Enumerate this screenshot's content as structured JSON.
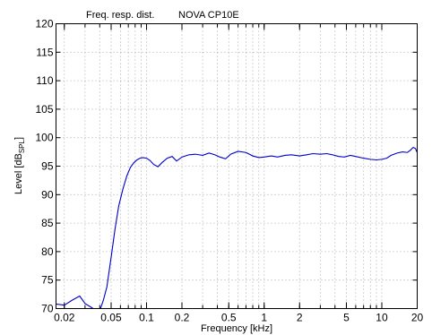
{
  "chart_data": {
    "type": "line",
    "title_left": "Freq. resp. dist.",
    "title_right": "NOVA CP10E",
    "xlabel": "Frequency [kHz]",
    "ylabel_main": "Level [dB",
    "ylabel_sub": "SPL",
    "ylabel_end": "]",
    "xscale": "log",
    "xlim": [
      0.017,
      20
    ],
    "ylim": [
      70,
      120
    ],
    "grid": true,
    "x_ticks": [
      0.02,
      0.05,
      0.1,
      0.2,
      0.5,
      1,
      2,
      5,
      10,
      20
    ],
    "x_tick_labels": [
      "0.02",
      "0.05",
      "0.1",
      "0.2",
      "0.5",
      "1",
      "2",
      "5",
      "10",
      "20"
    ],
    "y_ticks": [
      70,
      75,
      80,
      85,
      90,
      95,
      100,
      105,
      110,
      115,
      120
    ],
    "y_tick_labels": [
      "70",
      "75",
      "80",
      "85",
      "90",
      "95",
      "100",
      "105",
      "110",
      "115",
      "120"
    ],
    "series": [
      {
        "color": "#0000cc",
        "x": [
          0.017,
          0.02,
          0.023,
          0.027,
          0.03,
          0.034,
          0.037,
          0.04,
          0.043,
          0.046,
          0.05,
          0.054,
          0.058,
          0.063,
          0.068,
          0.073,
          0.078,
          0.083,
          0.088,
          0.093,
          0.1,
          0.107,
          0.115,
          0.125,
          0.135,
          0.15,
          0.165,
          0.18,
          0.2,
          0.23,
          0.26,
          0.3,
          0.34,
          0.38,
          0.42,
          0.47,
          0.52,
          0.6,
          0.7,
          0.8,
          0.9,
          1.0,
          1.15,
          1.3,
          1.5,
          1.7,
          2.0,
          2.3,
          2.6,
          3.0,
          3.4,
          3.8,
          4.3,
          4.8,
          5.4,
          6.0,
          7.0,
          8.0,
          9.0,
          10.0,
          11.0,
          12.0,
          13.5,
          15.0,
          16.5,
          17.5,
          18.5,
          19.3,
          20.0
        ],
        "y": [
          70.8,
          70.6,
          71.4,
          72.2,
          70.9,
          70.2,
          69.7,
          69.6,
          71.5,
          73.8,
          79.0,
          84.0,
          88.0,
          91.0,
          93.3,
          94.8,
          95.6,
          96.1,
          96.4,
          96.5,
          96.4,
          96.0,
          95.3,
          94.9,
          95.6,
          96.4,
          96.7,
          95.9,
          96.6,
          97.0,
          97.1,
          96.9,
          97.3,
          97.0,
          96.6,
          96.3,
          97.1,
          97.6,
          97.4,
          96.8,
          96.5,
          96.6,
          96.8,
          96.6,
          96.9,
          97.0,
          96.8,
          97.0,
          97.2,
          97.1,
          97.2,
          97.0,
          96.7,
          96.6,
          96.9,
          96.7,
          96.4,
          96.2,
          96.1,
          96.2,
          96.4,
          96.9,
          97.3,
          97.5,
          97.4,
          97.8,
          98.3,
          98.1,
          97.4
        ]
      }
    ]
  }
}
